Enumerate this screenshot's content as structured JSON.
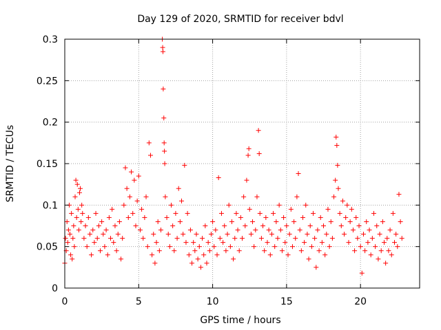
{
  "chart_data": {
    "type": "scatter",
    "title": "Day 129 of 2020, SRMTID for receiver bdvl",
    "xlabel": "GPS time / hours",
    "ylabel": "SRMTID / TECUs",
    "xlim": [
      0,
      24
    ],
    "ylim": [
      0,
      0.3
    ],
    "x_ticks": [
      0,
      5,
      10,
      15,
      20
    ],
    "x_tick_labels": [
      "0",
      "5",
      "10",
      "15",
      "20"
    ],
    "y_ticks": [
      0,
      0.05,
      0.1,
      0.15,
      0.2,
      0.25,
      0.3
    ],
    "y_tick_labels": [
      "0",
      "0.05",
      "0.1",
      "0.15",
      "0.2",
      "0.25",
      "0.3"
    ],
    "grid": true,
    "marker": "+",
    "marker_color": "#ff0000",
    "series": [
      {
        "name": "SRMTID",
        "points": [
          [
            0.0,
            0.03
          ],
          [
            0.05,
            0.06
          ],
          [
            0.1,
            0.045
          ],
          [
            0.15,
            0.08
          ],
          [
            0.2,
            0.055
          ],
          [
            0.25,
            0.07
          ],
          [
            0.3,
            0.1
          ],
          [
            0.35,
            0.065
          ],
          [
            0.4,
            0.04
          ],
          [
            0.45,
            0.09
          ],
          [
            0.5,
            0.035
          ],
          [
            0.55,
            0.06
          ],
          [
            0.6,
            0.075
          ],
          [
            0.65,
            0.05
          ],
          [
            0.7,
            0.11
          ],
          [
            0.75,
            0.13
          ],
          [
            0.8,
            0.085
          ],
          [
            0.85,
            0.125
          ],
          [
            0.9,
            0.095
          ],
          [
            0.95,
            0.07
          ],
          [
            1.0,
            0.115
          ],
          [
            1.05,
            0.12
          ],
          [
            1.1,
            0.08
          ],
          [
            1.15,
            0.1
          ],
          [
            1.2,
            0.09
          ],
          [
            1.3,
            0.06
          ],
          [
            1.4,
            0.075
          ],
          [
            1.5,
            0.05
          ],
          [
            1.6,
            0.085
          ],
          [
            1.7,
            0.065
          ],
          [
            1.8,
            0.04
          ],
          [
            1.9,
            0.07
          ],
          [
            2.0,
            0.055
          ],
          [
            2.1,
            0.09
          ],
          [
            2.2,
            0.06
          ],
          [
            2.3,
            0.075
          ],
          [
            2.4,
            0.045
          ],
          [
            2.5,
            0.08
          ],
          [
            2.6,
            0.065
          ],
          [
            2.7,
            0.05
          ],
          [
            2.8,
            0.07
          ],
          [
            2.9,
            0.04
          ],
          [
            3.0,
            0.085
          ],
          [
            3.1,
            0.06
          ],
          [
            3.2,
            0.095
          ],
          [
            3.3,
            0.055
          ],
          [
            3.4,
            0.075
          ],
          [
            3.5,
            0.045
          ],
          [
            3.6,
            0.065
          ],
          [
            3.7,
            0.08
          ],
          [
            3.8,
            0.035
          ],
          [
            3.9,
            0.06
          ],
          [
            4.0,
            0.1
          ],
          [
            4.1,
            0.145
          ],
          [
            4.2,
            0.12
          ],
          [
            4.3,
            0.085
          ],
          [
            4.4,
            0.11
          ],
          [
            4.5,
            0.14
          ],
          [
            4.6,
            0.09
          ],
          [
            4.7,
            0.13
          ],
          [
            4.8,
            0.075
          ],
          [
            4.9,
            0.105
          ],
          [
            5.0,
            0.135
          ],
          [
            5.1,
            0.07
          ],
          [
            5.2,
            0.095
          ],
          [
            5.3,
            0.06
          ],
          [
            5.4,
            0.085
          ],
          [
            5.5,
            0.11
          ],
          [
            5.6,
            0.05
          ],
          [
            5.7,
            0.175
          ],
          [
            5.8,
            0.16
          ],
          [
            5.9,
            0.04
          ],
          [
            6.0,
            0.065
          ],
          [
            6.1,
            0.03
          ],
          [
            6.2,
            0.055
          ],
          [
            6.3,
            0.08
          ],
          [
            6.4,
            0.045
          ],
          [
            6.5,
            0.07
          ],
          [
            6.6,
            0.3
          ],
          [
            6.62,
            0.29
          ],
          [
            6.64,
            0.285
          ],
          [
            6.66,
            0.24
          ],
          [
            6.7,
            0.205
          ],
          [
            6.72,
            0.175
          ],
          [
            6.74,
            0.165
          ],
          [
            6.76,
            0.15
          ],
          [
            6.8,
            0.11
          ],
          [
            6.9,
            0.085
          ],
          [
            7.0,
            0.065
          ],
          [
            7.1,
            0.05
          ],
          [
            7.2,
            0.1
          ],
          [
            7.3,
            0.075
          ],
          [
            7.4,
            0.045
          ],
          [
            7.5,
            0.09
          ],
          [
            7.6,
            0.06
          ],
          [
            7.7,
            0.12
          ],
          [
            7.8,
            0.08
          ],
          [
            7.9,
            0.105
          ],
          [
            8.0,
            0.065
          ],
          [
            8.1,
            0.148
          ],
          [
            8.2,
            0.055
          ],
          [
            8.3,
            0.09
          ],
          [
            8.4,
            0.04
          ],
          [
            8.5,
            0.07
          ],
          [
            8.6,
            0.03
          ],
          [
            8.7,
            0.055
          ],
          [
            8.8,
            0.045
          ],
          [
            8.9,
            0.065
          ],
          [
            9.0,
            0.035
          ],
          [
            9.1,
            0.05
          ],
          [
            9.2,
            0.025
          ],
          [
            9.3,
            0.06
          ],
          [
            9.4,
            0.04
          ],
          [
            9.5,
            0.075
          ],
          [
            9.6,
            0.03
          ],
          [
            9.7,
            0.055
          ],
          [
            9.8,
            0.045
          ],
          [
            9.9,
            0.065
          ],
          [
            10.0,
            0.08
          ],
          [
            10.1,
            0.05
          ],
          [
            10.2,
            0.07
          ],
          [
            10.3,
            0.04
          ],
          [
            10.4,
            0.133
          ],
          [
            10.5,
            0.06
          ],
          [
            10.6,
            0.09
          ],
          [
            10.7,
            0.055
          ],
          [
            10.8,
            0.075
          ],
          [
            10.9,
            0.045
          ],
          [
            11.0,
            0.065
          ],
          [
            11.1,
            0.1
          ],
          [
            11.2,
            0.05
          ],
          [
            11.3,
            0.08
          ],
          [
            11.4,
            0.035
          ],
          [
            11.5,
            0.06
          ],
          [
            11.6,
            0.09
          ],
          [
            11.7,
            0.07
          ],
          [
            11.8,
            0.045
          ],
          [
            11.9,
            0.085
          ],
          [
            12.0,
            0.06
          ],
          [
            12.1,
            0.11
          ],
          [
            12.2,
            0.075
          ],
          [
            12.3,
            0.13
          ],
          [
            12.4,
            0.16
          ],
          [
            12.45,
            0.168
          ],
          [
            12.5,
            0.095
          ],
          [
            12.6,
            0.065
          ],
          [
            12.7,
            0.08
          ],
          [
            12.8,
            0.05
          ],
          [
            12.9,
            0.07
          ],
          [
            13.0,
            0.11
          ],
          [
            13.1,
            0.19
          ],
          [
            13.15,
            0.162
          ],
          [
            13.2,
            0.09
          ],
          [
            13.3,
            0.06
          ],
          [
            13.4,
            0.075
          ],
          [
            13.5,
            0.045
          ],
          [
            13.6,
            0.085
          ],
          [
            13.7,
            0.055
          ],
          [
            13.8,
            0.07
          ],
          [
            13.9,
            0.04
          ],
          [
            14.0,
            0.065
          ],
          [
            14.1,
            0.09
          ],
          [
            14.2,
            0.05
          ],
          [
            14.3,
            0.08
          ],
          [
            14.4,
            0.06
          ],
          [
            14.5,
            0.1
          ],
          [
            14.6,
            0.07
          ],
          [
            14.7,
            0.045
          ],
          [
            14.8,
            0.085
          ],
          [
            14.9,
            0.055
          ],
          [
            15.0,
            0.075
          ],
          [
            15.1,
            0.04
          ],
          [
            15.2,
            0.065
          ],
          [
            15.3,
            0.095
          ],
          [
            15.4,
            0.05
          ],
          [
            15.5,
            0.08
          ],
          [
            15.6,
            0.06
          ],
          [
            15.7,
            0.11
          ],
          [
            15.8,
            0.138
          ],
          [
            15.9,
            0.07
          ],
          [
            16.0,
            0.045
          ],
          [
            16.1,
            0.085
          ],
          [
            16.2,
            0.055
          ],
          [
            16.3,
            0.1
          ],
          [
            16.4,
            0.065
          ],
          [
            16.5,
            0.035
          ],
          [
            16.6,
            0.075
          ],
          [
            16.7,
            0.05
          ],
          [
            16.8,
            0.09
          ],
          [
            16.9,
            0.06
          ],
          [
            17.0,
            0.025
          ],
          [
            17.1,
            0.07
          ],
          [
            17.2,
            0.045
          ],
          [
            17.3,
            0.085
          ],
          [
            17.4,
            0.055
          ],
          [
            17.5,
            0.075
          ],
          [
            17.6,
            0.04
          ],
          [
            17.7,
            0.065
          ],
          [
            17.8,
            0.095
          ],
          [
            17.9,
            0.05
          ],
          [
            18.0,
            0.08
          ],
          [
            18.1,
            0.06
          ],
          [
            18.2,
            0.11
          ],
          [
            18.3,
            0.13
          ],
          [
            18.35,
            0.182
          ],
          [
            18.4,
            0.172
          ],
          [
            18.45,
            0.148
          ],
          [
            18.5,
            0.12
          ],
          [
            18.6,
            0.09
          ],
          [
            18.7,
            0.075
          ],
          [
            18.8,
            0.105
          ],
          [
            18.9,
            0.065
          ],
          [
            19.0,
            0.085
          ],
          [
            19.1,
            0.1
          ],
          [
            19.2,
            0.055
          ],
          [
            19.3,
            0.08
          ],
          [
            19.4,
            0.095
          ],
          [
            19.5,
            0.07
          ],
          [
            19.6,
            0.045
          ],
          [
            19.7,
            0.085
          ],
          [
            19.8,
            0.06
          ],
          [
            19.9,
            0.075
          ],
          [
            20.0,
            0.05
          ],
          [
            20.1,
            0.018
          ],
          [
            20.2,
            0.065
          ],
          [
            20.3,
            0.045
          ],
          [
            20.4,
            0.08
          ],
          [
            20.5,
            0.055
          ],
          [
            20.6,
            0.07
          ],
          [
            20.7,
            0.04
          ],
          [
            20.8,
            0.06
          ],
          [
            20.9,
            0.09
          ],
          [
            21.0,
            0.05
          ],
          [
            21.1,
            0.075
          ],
          [
            21.2,
            0.035
          ],
          [
            21.3,
            0.065
          ],
          [
            21.4,
            0.045
          ],
          [
            21.5,
            0.08
          ],
          [
            21.6,
            0.055
          ],
          [
            21.7,
            0.03
          ],
          [
            21.8,
            0.06
          ],
          [
            21.9,
            0.045
          ],
          [
            22.0,
            0.07
          ],
          [
            22.1,
            0.04
          ],
          [
            22.2,
            0.09
          ],
          [
            22.3,
            0.055
          ],
          [
            22.4,
            0.065
          ],
          [
            22.5,
            0.05
          ],
          [
            22.6,
            0.113
          ],
          [
            22.7,
            0.08
          ],
          [
            22.8,
            0.06
          ]
        ]
      }
    ]
  }
}
